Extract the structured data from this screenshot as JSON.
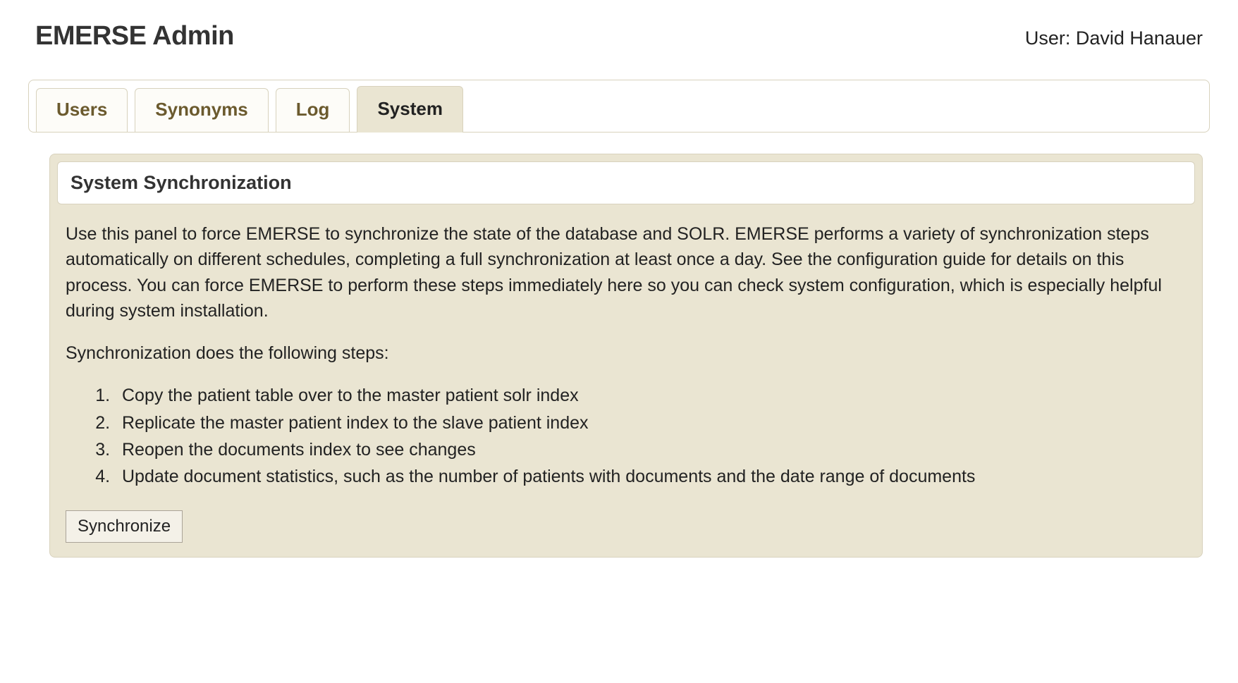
{
  "header": {
    "app_title": "EMERSE Admin",
    "user_prefix": "User: ",
    "user_name": "David Hanauer"
  },
  "tabs": [
    {
      "id": "users",
      "label": "Users",
      "active": false
    },
    {
      "id": "synonyms",
      "label": "Synonyms",
      "active": false
    },
    {
      "id": "log",
      "label": "Log",
      "active": false
    },
    {
      "id": "system",
      "label": "System",
      "active": true
    }
  ],
  "panel": {
    "title": "System Synchronization",
    "description": "Use this panel to force EMERSE to synchronize the state of the database and SOLR. EMERSE performs a variety of synchronization steps automatically on different schedules, completing a full synchronization at least once a day. See the configuration guide for details on this process. You can force EMERSE to perform these steps immediately here so you can check system configuration, which is especially helpful during system installation.",
    "steps_intro": "Synchronization does the following steps:",
    "steps": [
      "Copy the patient table over to the master patient solr index",
      "Replicate the master patient index to the slave patient index",
      "Reopen the documents index to see changes",
      "Update document statistics, such as the number of patients with documents and the date range of documents"
    ],
    "button_label": "Synchronize"
  },
  "colors": {
    "panel_bg": "#eae5d2",
    "panel_border": "#d8d2bd",
    "tab_inactive_text": "#6b5a2e",
    "tab_active_text": "#222222",
    "page_bg": "#ffffff"
  }
}
